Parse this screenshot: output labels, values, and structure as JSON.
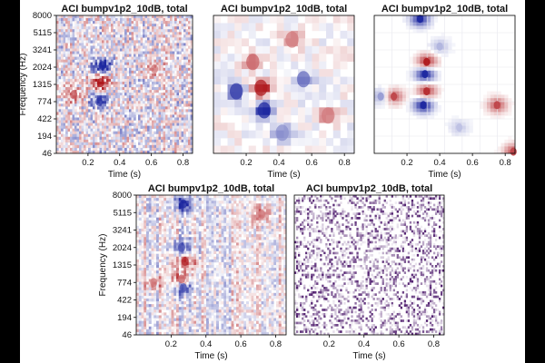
{
  "figure": {
    "background": "#ffffff",
    "frame": "#000000"
  },
  "chart_data": [
    {
      "type": "heatmap",
      "title": "ACI bumpv1p2_10dB, total",
      "xlabel": "Time (s)",
      "ylabel": "Frequency (Hz)",
      "xticks": [
        "0.2",
        "0.4",
        "0.6",
        "0.8"
      ],
      "xlim": [
        0.0,
        0.86
      ],
      "yticks": [
        "46",
        "194",
        "422",
        "774",
        "1315",
        "2024",
        "3241",
        "5115",
        "8000"
      ],
      "colormap": "blue-white-red (diverging)",
      "style": "fine noisy stripes",
      "blobs": [
        {
          "t": 0.29,
          "f_index": 5.1,
          "sign": -1,
          "amp": 1.0
        },
        {
          "t": 0.28,
          "f_index": 4.1,
          "sign": 1,
          "amp": 0.9
        },
        {
          "t": 0.27,
          "f_index": 3.0,
          "sign": -1,
          "amp": 0.8
        },
        {
          "t": 0.11,
          "f_index": 3.4,
          "sign": 1,
          "amp": 0.6
        },
        {
          "t": 0.62,
          "f_index": 4.9,
          "sign": 1,
          "amp": 0.5
        }
      ]
    },
    {
      "type": "heatmap",
      "title": "ACI bumpv1p2_10dB, total",
      "xlabel": "Time (s)",
      "xticks": [
        "0.2",
        "0.4",
        "0.6",
        "0.8"
      ],
      "xlim": [
        0.0,
        0.86
      ],
      "colormap": "blue-white-red (diverging)",
      "style": "smoothed",
      "blobs": [
        {
          "t": 0.29,
          "f_index": 3.8,
          "sign": 1,
          "amp": 1.0
        },
        {
          "t": 0.31,
          "f_index": 2.5,
          "sign": -1,
          "amp": 0.9
        },
        {
          "t": 0.14,
          "f_index": 3.6,
          "sign": -1,
          "amp": 0.8
        },
        {
          "t": 0.24,
          "f_index": 5.3,
          "sign": 1,
          "amp": 0.6
        },
        {
          "t": 0.55,
          "f_index": 4.3,
          "sign": -1,
          "amp": 0.6
        },
        {
          "t": 0.7,
          "f_index": 2.2,
          "sign": 1,
          "amp": 0.5
        },
        {
          "t": 0.48,
          "f_index": 6.6,
          "sign": 1,
          "amp": 0.5
        },
        {
          "t": 0.42,
          "f_index": 1.2,
          "sign": -1,
          "amp": 0.45
        }
      ]
    },
    {
      "type": "heatmap",
      "title": "ACI bumpv1p2_10dB, total",
      "xlabel": "Time (s)",
      "xticks": [
        "0.2",
        "0.4",
        "0.6",
        "0.8"
      ],
      "xlim": [
        0.0,
        0.86
      ],
      "colormap": "blue-white-red (diverging)",
      "style": "sparse dots",
      "blobs": [
        {
          "t": 0.28,
          "f_index": 7.8,
          "sign": -1,
          "amp": 0.9
        },
        {
          "t": 0.32,
          "f_index": 5.3,
          "sign": 1,
          "amp": 0.9
        },
        {
          "t": 0.31,
          "f_index": 4.6,
          "sign": -1,
          "amp": 1.0
        },
        {
          "t": 0.32,
          "f_index": 3.6,
          "sign": 1,
          "amp": 0.8
        },
        {
          "t": 0.3,
          "f_index": 2.8,
          "sign": -1,
          "amp": 1.0
        },
        {
          "t": 0.12,
          "f_index": 3.3,
          "sign": 1,
          "amp": 0.7
        },
        {
          "t": 0.04,
          "f_index": 3.3,
          "sign": -1,
          "amp": 0.4
        },
        {
          "t": 0.75,
          "f_index": 2.8,
          "sign": 1,
          "amp": 0.7
        },
        {
          "t": 0.85,
          "f_index": 0.1,
          "sign": 1,
          "amp": 0.7
        },
        {
          "t": 0.4,
          "f_index": 6.2,
          "sign": -1,
          "amp": 0.3
        },
        {
          "t": 0.52,
          "f_index": 1.5,
          "sign": -1,
          "amp": 0.25
        }
      ]
    },
    {
      "type": "heatmap",
      "title": "ACI bumpv1p2_10dB, total",
      "xlabel": "Time (s)",
      "ylabel": "Frequency (Hz)",
      "xticks": [
        "0.2",
        "0.4",
        "0.6",
        "0.8"
      ],
      "xlim": [
        0.0,
        0.86
      ],
      "yticks": [
        "46",
        "194",
        "422",
        "774",
        "1315",
        "2024",
        "3241",
        "5115",
        "8000"
      ],
      "colormap": "blue-white-red (diverging)",
      "style": "vertical streaks",
      "blobs": [
        {
          "t": 0.27,
          "f_index": 7.5,
          "sign": -1,
          "amp": 0.9
        },
        {
          "t": 0.26,
          "f_index": 5.0,
          "sign": -1,
          "amp": 0.7
        },
        {
          "t": 0.28,
          "f_index": 4.2,
          "sign": 1,
          "amp": 0.8
        },
        {
          "t": 0.26,
          "f_index": 3.2,
          "sign": 1,
          "amp": 0.6
        },
        {
          "t": 0.27,
          "f_index": 2.7,
          "sign": -1,
          "amp": 0.7
        },
        {
          "t": 0.1,
          "f_index": 3.0,
          "sign": 1,
          "amp": 0.5
        },
        {
          "t": 0.72,
          "f_index": 6.9,
          "sign": 1,
          "amp": 0.5
        }
      ]
    },
    {
      "type": "heatmap",
      "title": "ACI bumpv1p2_10dB, total",
      "xlabel": "Time (s)",
      "xticks": [
        "0.2",
        "0.4",
        "0.6",
        "0.8"
      ],
      "xlim": [
        0.0,
        0.86
      ],
      "colormap": "white-purple (sequential)",
      "style": "speckle",
      "blobs": []
    }
  ]
}
